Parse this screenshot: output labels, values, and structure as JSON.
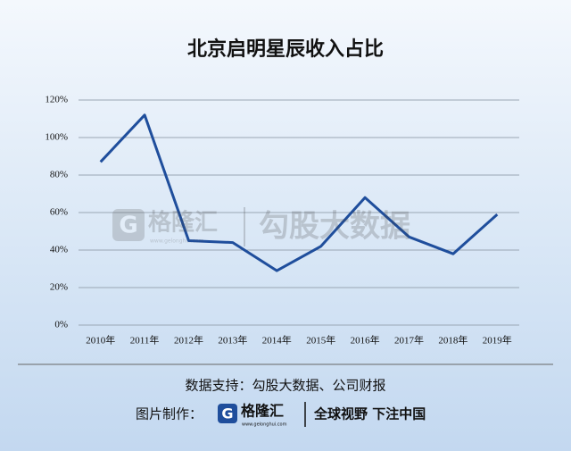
{
  "chart_data": {
    "type": "line",
    "title": "北京启明星辰收入占比",
    "categories": [
      "2010年",
      "2011年",
      "2012年",
      "2013年",
      "2014年",
      "2015年",
      "2016年",
      "2017年",
      "2018年",
      "2019年"
    ],
    "values": [
      87,
      112,
      45,
      44,
      29,
      42,
      68,
      47,
      38,
      59
    ],
    "color": "#1f4e9c",
    "ylim": [
      0,
      120
    ],
    "yticks": [
      {
        "value": 0,
        "label": "0%"
      },
      {
        "value": 20,
        "label": "20%"
      },
      {
        "value": 40,
        "label": "40%"
      },
      {
        "value": 60,
        "label": "60%"
      },
      {
        "value": 80,
        "label": "80%"
      },
      {
        "value": 100,
        "label": "100%"
      },
      {
        "value": 120,
        "label": "120%"
      }
    ],
    "grid": true
  },
  "watermark": {
    "brand": "格隆汇",
    "url": "www.gelonghui.com",
    "text": "勾股大数据"
  },
  "footer": {
    "source": "数据支持：勾股大数据、公司财报",
    "credit_label": "图片制作：",
    "brand": "格隆汇",
    "brand_url": "www.gelonghui.com",
    "slogan": "全球视野 下注中国"
  }
}
